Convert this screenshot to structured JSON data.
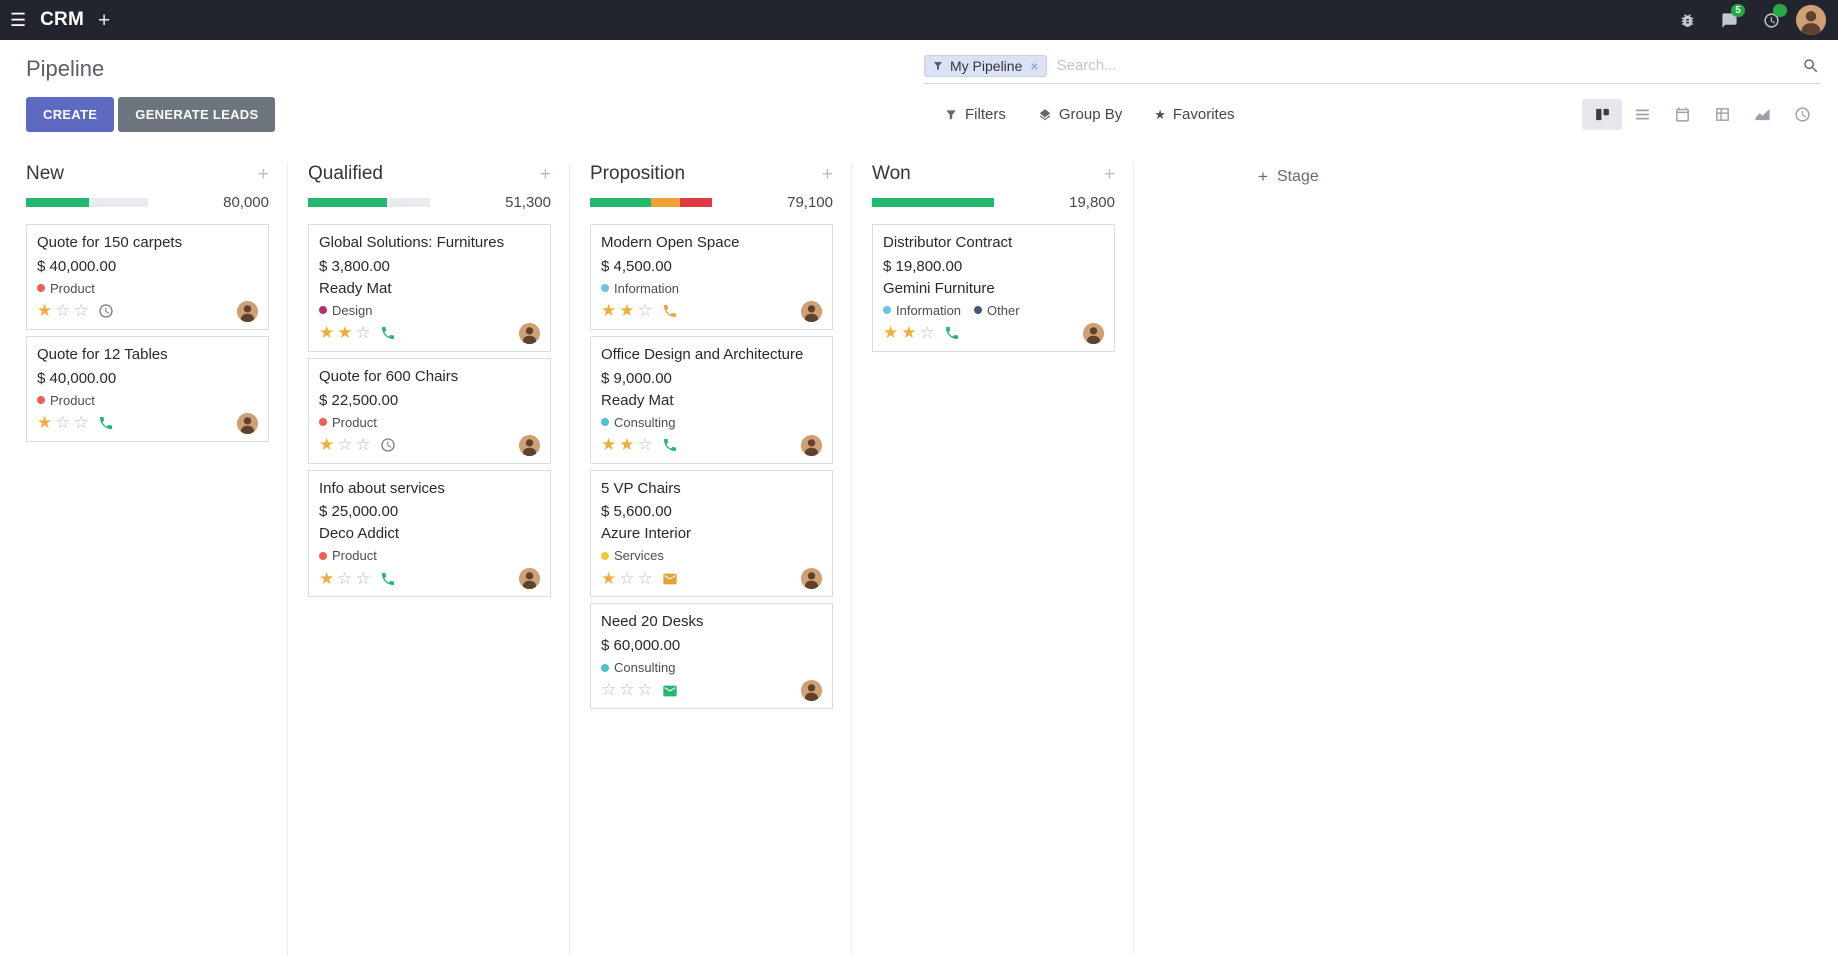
{
  "icons": {
    "hamburger": "☰",
    "plus": "+",
    "close": "×",
    "star_filled": "★",
    "star_empty": "☆"
  },
  "navbar": {
    "app_name": "CRM",
    "messages_badge": "5",
    "activities_badge": ""
  },
  "control_panel": {
    "title": "Pipeline",
    "create_label": "CREATE",
    "generate_leads_label": "GENERATE LEADS",
    "search": {
      "facet_label": "My Pipeline",
      "placeholder": "Search..."
    },
    "filters_label": "Filters",
    "group_by_label": "Group By",
    "favorites_label": "Favorites"
  },
  "kanban": {
    "add_stage_label": "Stage",
    "columns": [
      {
        "name": "New",
        "counter": "80,000",
        "progress": [
          {
            "name": "success",
            "color": "#24b76f",
            "pct": 52
          },
          {
            "name": "empty",
            "color": "#e9ecef",
            "pct": 48
          }
        ],
        "cards": [
          {
            "title": "Quote for 150 carpets",
            "amount": "$ 40,000.00",
            "tags": [
              {
                "label": "Product",
                "color": "#f06050"
              }
            ],
            "stars": 1,
            "activity": {
              "icon": "clock",
              "color": "#75797e"
            }
          },
          {
            "title": "Quote for 12 Tables",
            "amount": "$ 40,000.00",
            "tags": [
              {
                "label": "Product",
                "color": "#f06050"
              }
            ],
            "stars": 1,
            "activity": {
              "icon": "phone",
              "color": "#24b76f"
            }
          }
        ]
      },
      {
        "name": "Qualified",
        "counter": "51,300",
        "progress": [
          {
            "name": "success",
            "color": "#24b76f",
            "pct": 65
          },
          {
            "name": "empty",
            "color": "#e9ecef",
            "pct": 35
          }
        ],
        "cards": [
          {
            "title": "Global Solutions: Furnitures",
            "amount": "$ 3,800.00",
            "partner": "Ready Mat",
            "tags": [
              {
                "label": "Design",
                "color": "#a9336c"
              }
            ],
            "stars": 2,
            "activity": {
              "icon": "phone",
              "color": "#24b76f"
            }
          },
          {
            "title": "Quote for 600 Chairs",
            "amount": "$ 22,500.00",
            "tags": [
              {
                "label": "Product",
                "color": "#f06050"
              }
            ],
            "stars": 1,
            "activity": {
              "icon": "clock",
              "color": "#75797e"
            }
          },
          {
            "title": "Info about services",
            "amount": "$ 25,000.00",
            "partner": "Deco Addict",
            "tags": [
              {
                "label": "Product",
                "color": "#f06050"
              }
            ],
            "stars": 1,
            "activity": {
              "icon": "phone",
              "color": "#24b76f"
            }
          }
        ]
      },
      {
        "name": "Proposition",
        "counter": "79,100",
        "progress": [
          {
            "name": "success",
            "color": "#24b76f",
            "pct": 50
          },
          {
            "name": "warning",
            "color": "#eea236",
            "pct": 24
          },
          {
            "name": "danger",
            "color": "#dd3b44",
            "pct": 26
          }
        ],
        "cards": [
          {
            "title": "Modern Open Space",
            "amount": "$ 4,500.00",
            "tags": [
              {
                "label": "Information",
                "color": "#6cc1ed"
              }
            ],
            "stars": 2,
            "activity": {
              "icon": "phone",
              "color": "#eea236"
            }
          },
          {
            "title": "Office Design and Architecture",
            "amount": "$ 9,000.00",
            "partner": "Ready Mat",
            "tags": [
              {
                "label": "Consulting",
                "color": "#4ec3c9"
              }
            ],
            "stars": 2,
            "activity": {
              "icon": "phone",
              "color": "#24b76f"
            }
          },
          {
            "title": "5 VP Chairs",
            "amount": "$ 5,600.00",
            "partner": "Azure Interior",
            "tags": [
              {
                "label": "Services",
                "color": "#f0c93d"
              }
            ],
            "stars": 1,
            "activity": {
              "icon": "envelope",
              "color": "#e2a33d"
            }
          },
          {
            "title": "Need 20 Desks",
            "amount": "$ 60,000.00",
            "tags": [
              {
                "label": "Consulting",
                "color": "#4ec3c9"
              }
            ],
            "stars": 0,
            "activity": {
              "icon": "envelope",
              "color": "#24b76f"
            }
          }
        ]
      },
      {
        "name": "Won",
        "counter": "19,800",
        "progress": [
          {
            "name": "success",
            "color": "#24b76f",
            "pct": 100
          }
        ],
        "cards": [
          {
            "title": "Distributor Contract",
            "amount": "$ 19,800.00",
            "partner": "Gemini Furniture",
            "tags": [
              {
                "label": "Information",
                "color": "#6cc1ed"
              },
              {
                "label": "Other",
                "color": "#475577"
              }
            ],
            "stars": 2,
            "activity": {
              "icon": "phone",
              "color": "#24b76f"
            }
          }
        ]
      }
    ]
  }
}
